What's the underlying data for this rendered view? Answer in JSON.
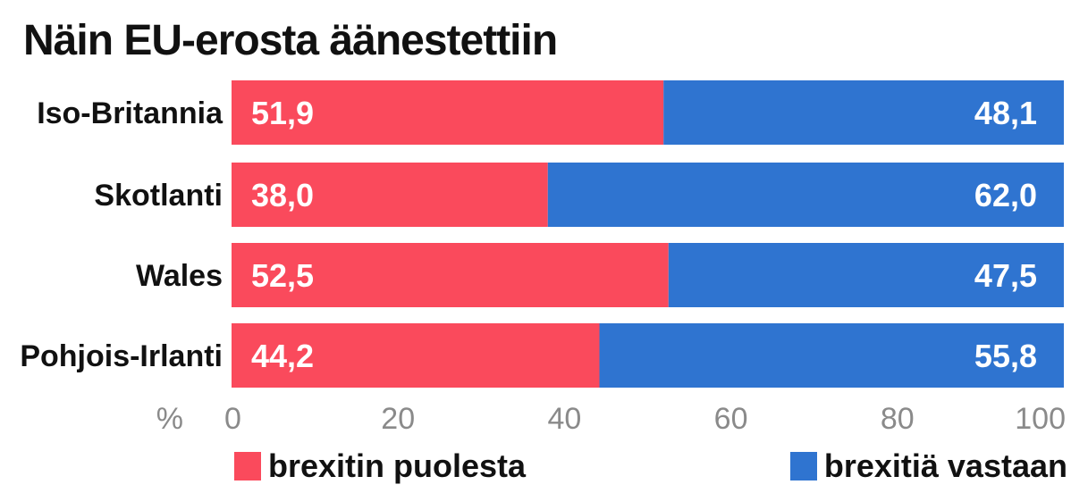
{
  "chart_data": {
    "type": "bar",
    "orientation": "horizontal",
    "stacked": true,
    "title": "Näin EU-erosta äänestettiin",
    "xlabel": "%",
    "xlim": [
      0,
      100
    ],
    "xticks": [
      "0",
      "20",
      "40",
      "60",
      "80",
      "100"
    ],
    "categories": [
      "Iso-Britannia",
      "Skotlanti",
      "Wales",
      "Pohjois-Irlanti"
    ],
    "series": [
      {
        "name": "brexitin puolesta",
        "color": "#fa4a5c",
        "values": [
          51.9,
          38.0,
          52.5,
          44.2
        ],
        "labels": [
          "51,9",
          "38,0",
          "52,5",
          "44,2"
        ]
      },
      {
        "name": "brexitiä vastaan",
        "color": "#2f74d0",
        "values": [
          48.1,
          62.0,
          47.5,
          55.8
        ],
        "labels": [
          "48,1",
          "62,0",
          "47,5",
          "55,8"
        ]
      }
    ],
    "grid": false,
    "legend_position": "bottom"
  }
}
